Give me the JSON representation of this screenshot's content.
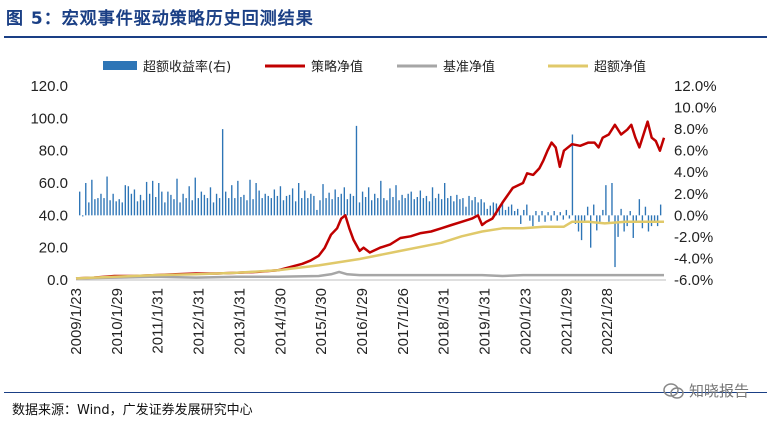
{
  "header": {
    "title": "图 5：宏观事件驱动策略历史回测结果"
  },
  "footer": {
    "source": "数据来源：Wind，广发证券发展研究中心",
    "watermark": "知晓报告"
  },
  "colors": {
    "bar": "#2e75b6",
    "strategy": "#c00000",
    "benchmark": "#a6a6a6",
    "excess": "#e0c96a",
    "title": "#1a3f85"
  },
  "chart_data": {
    "type": "line",
    "title": "图 5：宏观事件驱动策略历史回测结果",
    "x_tick_labels": [
      "2009/1/23",
      "2010/1/29",
      "2011/1/31",
      "2012/1/31",
      "2013/1/31",
      "2014/1/30",
      "2015/1/30",
      "2016/1/29",
      "2017/1/26",
      "2018/1/31",
      "2019/1/31",
      "2020/1/23",
      "2021/1/29",
      "2022/1/28"
    ],
    "y_left": {
      "ticks": [
        "0.0",
        "20.0",
        "40.0",
        "60.0",
        "80.0",
        "100.0",
        "120.0"
      ],
      "range": [
        0,
        120
      ]
    },
    "y_right": {
      "ticks": [
        "-6.0%",
        "-4.0%",
        "-2.0%",
        "0.0%",
        "2.0%",
        "4.0%",
        "6.0%",
        "8.0%",
        "10.0%",
        "12.0%"
      ],
      "range": [
        -6,
        12
      ]
    },
    "legend": [
      "超额收益率(右)",
      "策略净值",
      "基准净值",
      "超额净值"
    ],
    "x_range": [
      2009.06,
      2023.5
    ],
    "series": [
      {
        "name": "策略净值",
        "axis": "left",
        "kind": "line",
        "x": [
          2009.06,
          2009.5,
          2010.0,
          2010.5,
          2011.0,
          2011.5,
          2012.0,
          2012.5,
          2013.0,
          2013.5,
          2014.0,
          2014.3,
          2014.6,
          2014.8,
          2015.0,
          2015.15,
          2015.3,
          2015.45,
          2015.55,
          2015.65,
          2015.75,
          2015.85,
          2016.0,
          2016.1,
          2016.25,
          2016.5,
          2016.75,
          2017.0,
          2017.25,
          2017.5,
          2017.75,
          2018.0,
          2018.25,
          2018.5,
          2018.75,
          2018.9,
          2019.0,
          2019.1,
          2019.25,
          2019.5,
          2019.75,
          2020.0,
          2020.1,
          2020.25,
          2020.4,
          2020.5,
          2020.6,
          2020.7,
          2020.8,
          2020.9,
          2021.0,
          2021.2,
          2021.4,
          2021.6,
          2021.75,
          2021.85,
          2021.95,
          2022.1,
          2022.25,
          2022.4,
          2022.55,
          2022.65,
          2022.75,
          2022.85,
          2022.95,
          2023.05,
          2023.15,
          2023.25,
          2023.35,
          2023.45
        ],
        "y": [
          1,
          1.5,
          2.5,
          2.5,
          3,
          3.5,
          4,
          4,
          4.5,
          5,
          6,
          8,
          10,
          12,
          15,
          20,
          28,
          32,
          38,
          40,
          32,
          25,
          18,
          20,
          17,
          20,
          22,
          26,
          27,
          29,
          30,
          32,
          34,
          36,
          38,
          40,
          34,
          36,
          38,
          48,
          57,
          60,
          66,
          65,
          69,
          74,
          80,
          85,
          82,
          70,
          80,
          84,
          83,
          85,
          85,
          82,
          88,
          90,
          96,
          90,
          93,
          96,
          88,
          82,
          90,
          98,
          88,
          86,
          80,
          88
        ]
      },
      {
        "name": "基准净值",
        "axis": "left",
        "kind": "line",
        "x": [
          2009.06,
          2010.0,
          2011.0,
          2012.0,
          2013.0,
          2014.0,
          2014.5,
          2015.0,
          2015.3,
          2015.5,
          2015.7,
          2016.0,
          2017.0,
          2018.0,
          2019.0,
          2019.5,
          2020.0,
          2021.0,
          2021.5,
          2022.0,
          2022.5,
          2023.0,
          2023.45
        ],
        "y": [
          1,
          1.5,
          2,
          1.5,
          2,
          2,
          2.2,
          2.5,
          3.5,
          5,
          3.5,
          3,
          3,
          3,
          3,
          2.5,
          3,
          3,
          3,
          3,
          3,
          3,
          3
        ]
      },
      {
        "name": "超额净值",
        "axis": "left",
        "kind": "line",
        "x": [
          2009.06,
          2010.0,
          2011.0,
          2012.0,
          2013.0,
          2014.0,
          2015.0,
          2016.0,
          2017.0,
          2018.0,
          2018.5,
          2019.0,
          2019.5,
          2020.0,
          2020.5,
          2021.0,
          2021.2,
          2021.6,
          2022.0,
          2022.5,
          2023.0,
          2023.45
        ],
        "y": [
          1,
          2,
          3,
          3.5,
          4.5,
          6,
          9,
          13,
          18,
          23,
          27,
          30,
          32,
          32,
          33,
          33,
          36,
          36,
          35,
          36,
          36,
          36
        ]
      },
      {
        "name": "超额收益率(右)",
        "axis": "right",
        "kind": "bar",
        "values": [
          2.2,
          -0.1,
          3.0,
          1.2,
          3.3,
          1.5,
          1.6,
          2.0,
          1.6,
          3.6,
          1.4,
          2.0,
          1.3,
          1.5,
          1.2,
          2.8,
          2.7,
          2.0,
          2.4,
          1.3,
          1.9,
          1.4,
          3.1,
          2.0,
          3.2,
          1.7,
          3.0,
          2.2,
          1.2,
          2.2,
          1.9,
          1.5,
          3.4,
          1.2,
          2.0,
          1.6,
          2.7,
          1.4,
          3.5,
          1.6,
          2.2,
          1.9,
          1.6,
          2.6,
          1.2,
          2.0,
          1.6,
          8.0,
          2.2,
          1.6,
          2.8,
          1.6,
          3.2,
          1.7,
          1.9,
          1.4,
          3.3,
          1.5,
          3.0,
          2.3,
          1.6,
          2.0,
          1.8,
          1.6,
          2.4,
          1.8,
          2.7,
          1.4,
          1.8,
          1.9,
          2.5,
          1.3,
          3.0,
          1.6,
          2.3,
          1.6,
          2.0,
          1.8,
          0.5,
          1.4,
          2.9,
          1.6,
          2.1,
          1.5,
          2.4,
          1.7,
          2.0,
          2.6,
          1.5,
          2.0,
          1.8,
          8.3,
          1.2,
          2.2,
          1.7,
          2.6,
          1.4,
          2.0,
          1.6,
          3.2,
          1.6,
          1.4,
          2.5,
          1.7,
          2.8,
          1.4,
          1.9,
          1.6,
          2.0,
          2.2,
          1.5,
          1.7,
          2.3,
          1.6,
          1.8,
          1.3,
          2.6,
          1.6,
          2.0,
          1.5,
          3.0,
          1.6,
          1.8,
          1.3,
          1.9,
          1.5,
          1.6,
          0.8,
          1.8,
          1.4,
          1.7,
          1.2,
          1.5,
          1.2,
          0.6,
          0.9,
          1.2,
          1.1,
          0.6,
          1.2,
          0.5,
          0.8,
          1.0,
          0.4,
          0.6,
          -0.8,
          0.5,
          1.0,
          -0.5,
          -1.0,
          0.4,
          -0.6,
          0.4,
          -0.6,
          0.3,
          -0.5,
          0.4,
          -0.5,
          0.3,
          -0.4,
          0.5,
          -0.3,
          7.5,
          -0.8,
          -1.5,
          -2.3,
          -0.6,
          0.8,
          -3.0,
          1.0,
          -1.4,
          -0.6,
          0.5,
          2.8,
          -0.6,
          3.0,
          -4.8,
          -2.0,
          0.6,
          -1.5,
          -1.0,
          0.4,
          -2.1,
          -0.6,
          1.5,
          -1.2,
          0.8,
          -1.5,
          -1.0,
          -0.6,
          -1.0,
          1.0
        ]
      }
    ]
  }
}
